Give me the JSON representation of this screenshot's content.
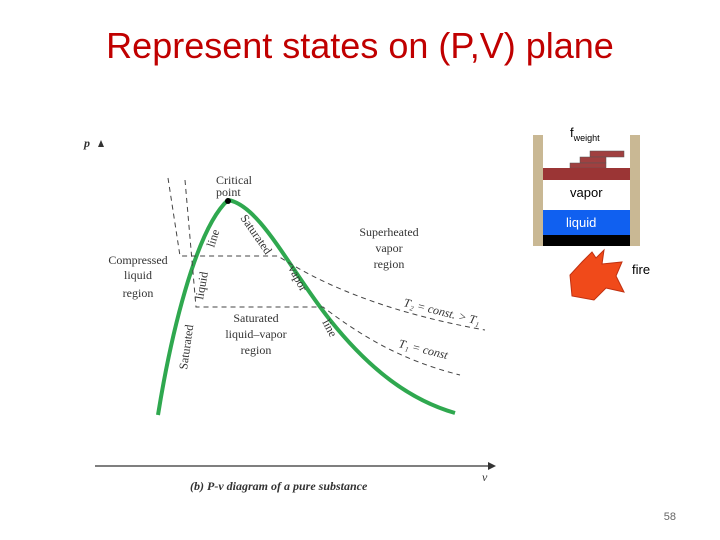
{
  "title": "Represent states on (P,V) plane",
  "pv_diagram": {
    "axis_y": "p",
    "axis_x": "v",
    "caption": "(b) P-v diagram of a pure substance",
    "critical_point": [
      "Critical",
      "point"
    ],
    "compressed_region": [
      "Compressed",
      "liquid",
      "region"
    ],
    "superheated_region": [
      "Superheated",
      "vapor",
      "region"
    ],
    "mixture_region": [
      "Saturated",
      "liquid–vapor",
      "region"
    ],
    "saturated_liquid_line": [
      "Saturated",
      "liquid",
      "line"
    ],
    "saturated_vapor_line": [
      "Saturated",
      "vapor",
      "line"
    ],
    "isotherm_t2": "T₂ = const. > T₁",
    "isotherm_t1": "T₁ = const"
  },
  "piston": {
    "force": "f",
    "force_subscript": "weight",
    "vapor": "vapor",
    "liquid": "liquid",
    "fire": "fire"
  },
  "page_number": "58"
}
